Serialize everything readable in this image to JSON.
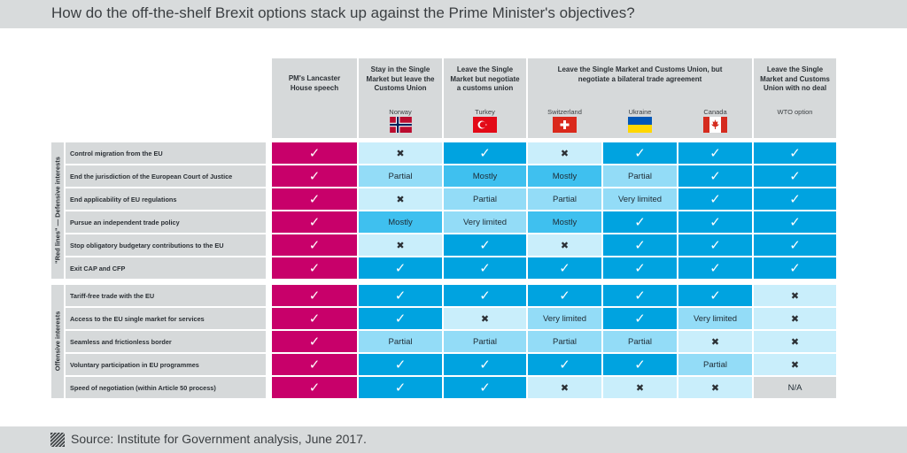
{
  "title": "How do the off-the-shelf Brexit options stack up against the Prime Minister's objectives?",
  "footer": "Source: Institute for Government analysis, June 2017.",
  "colors": {
    "pm": "#c8006a",
    "full": "#00a3e0",
    "mostly": "#3fc0ef",
    "partial": "#93dcf7",
    "light": "#c9eefb",
    "na": "#d6d9da",
    "header": "#d6d9da"
  },
  "chart_data": {
    "type": "table",
    "title": "How do the off-the-shelf Brexit options stack up against the Prime Minister's objectives?",
    "headers": {
      "pm": "PM's Lancaster House speech",
      "stay_sm": "Stay in the Single Market but leave the Customs Union",
      "leave_sm_cu": "Leave the Single Market but negotiate a customs union",
      "leave_both": "Leave the Single Market and Customs Union, but negotiate a bilateral trade agreement",
      "wto": "Leave the Single Market and Customs Union with no deal"
    },
    "subheaders": [
      "Norway",
      "Turkey",
      "Switzerland",
      "Ukraine",
      "Canada",
      "WTO option"
    ],
    "groups": [
      {
        "label": "\"Red lines\" — Defensive interests",
        "rows": [
          {
            "label": "Control migration from the EU",
            "values": [
              "check",
              "cross",
              "check",
              "cross",
              "check",
              "check",
              "check"
            ]
          },
          {
            "label": "End the jurisdiction of the European Court of Justice",
            "values": [
              "check",
              "Partial",
              "Mostly",
              "Mostly",
              "Partial",
              "check",
              "check"
            ]
          },
          {
            "label": "End applicability of EU regulations",
            "values": [
              "check",
              "cross",
              "Partial",
              "Partial",
              "Very limited",
              "check",
              "check"
            ]
          },
          {
            "label": "Pursue an independent trade policy",
            "values": [
              "check",
              "Mostly",
              "Very limited",
              "Mostly",
              "check",
              "check",
              "check"
            ]
          },
          {
            "label": "Stop obligatory budgetary contributions to the EU",
            "values": [
              "check",
              "cross",
              "check",
              "cross",
              "check",
              "check",
              "check"
            ]
          },
          {
            "label": "Exit CAP and CFP",
            "values": [
              "check",
              "check",
              "check",
              "check",
              "check",
              "check",
              "check"
            ]
          }
        ]
      },
      {
        "label": "Offensive interests",
        "rows": [
          {
            "label": "Tariff-free trade with the EU",
            "values": [
              "check",
              "check",
              "check",
              "check",
              "check",
              "check",
              "cross"
            ]
          },
          {
            "label": "Access to the EU single market for services",
            "values": [
              "check",
              "check",
              "cross",
              "Very limited",
              "check",
              "Very limited",
              "cross"
            ]
          },
          {
            "label": "Seamless and frictionless border",
            "values": [
              "check",
              "Partial",
              "Partial",
              "Partial",
              "Partial",
              "cross",
              "cross"
            ]
          },
          {
            "label": "Voluntary participation in EU programmes",
            "values": [
              "check",
              "check",
              "check",
              "check",
              "check",
              "Partial",
              "cross"
            ]
          },
          {
            "label": "Speed of negotiation (within Article 50 process)",
            "values": [
              "check",
              "check",
              "check",
              "cross",
              "cross",
              "cross",
              "N/A"
            ]
          }
        ]
      }
    ]
  }
}
